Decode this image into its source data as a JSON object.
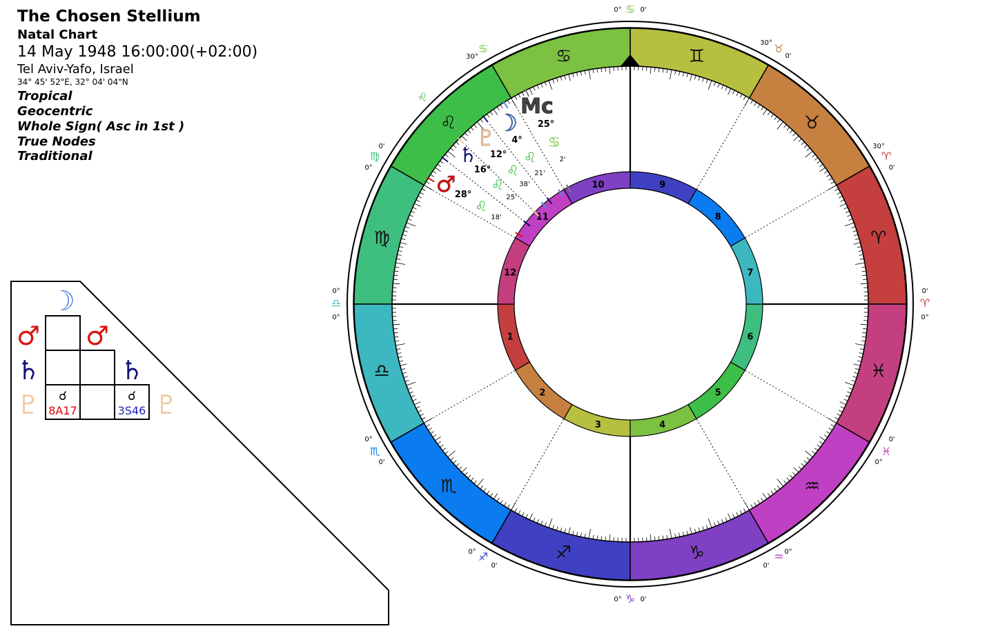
{
  "header": {
    "title": "The Chosen Stellium",
    "chart_type": "Natal Chart",
    "datetime": "14 May 1948 16:00:00(+02:00)",
    "location": "Tel Aviv-Yafo, Israel",
    "coordinates": "34° 45' 52\"E, 32° 04' 04\"N",
    "options": [
      "Tropical",
      "Geocentric",
      "Whole Sign( Asc in 1st )",
      "True Nodes",
      "Traditional"
    ]
  },
  "aspect_grid": {
    "top_glyph": "☽",
    "row_glyphs": [
      "♂",
      "♄",
      "♇"
    ],
    "right_glyphs": [
      "♂",
      "♄",
      "♇"
    ],
    "cells": [
      {
        "glyph": "☌",
        "label": "8A17",
        "color": "#dd0000"
      },
      {
        "glyph": "☌",
        "label": "3S46",
        "color": "#2222bb"
      }
    ]
  },
  "wheel": {
    "signs": [
      {
        "glyph": "♈",
        "color": "#c53f3f"
      },
      {
        "glyph": "♉",
        "color": "#c68040"
      },
      {
        "glyph": "♊",
        "color": "#b7bf40"
      },
      {
        "glyph": "♋",
        "color": "#7cc142"
      },
      {
        "glyph": "♌",
        "color": "#3dbe48"
      },
      {
        "glyph": "♍",
        "color": "#3ebf80"
      },
      {
        "glyph": "♎",
        "color": "#3db8c0"
      },
      {
        "glyph": "♏",
        "color": "#0a7cf0"
      },
      {
        "glyph": "♐",
        "color": "#4040c3"
      },
      {
        "glyph": "♑",
        "color": "#7f40c3"
      },
      {
        "glyph": "♒",
        "color": "#c040c4"
      },
      {
        "glyph": "♓",
        "color": "#c43f80"
      }
    ],
    "house_numbers": [
      "1",
      "2",
      "3",
      "4",
      "5",
      "6",
      "7",
      "8",
      "9",
      "10",
      "11",
      "12"
    ],
    "house_colors": [
      "#c53f3f",
      "#c68040",
      "#b7bf40",
      "#7cc142",
      "#3dbe48",
      "#3ebf80",
      "#3db8c0",
      "#0a7cf0",
      "#4040c3",
      "#7f40c3",
      "#c040c4",
      "#c43f80"
    ],
    "outer_labels": [
      {
        "deg": "0°",
        "glyph": "♋",
        "min": "0'"
      },
      {
        "deg": "30°",
        "glyph": "♉",
        "min": "0'"
      },
      {
        "deg": "30°",
        "glyph": "♈",
        "min": "0'"
      },
      {
        "deg": "0'",
        "glyph": "♈",
        "min": "0°"
      },
      {
        "deg": "0'",
        "glyph": "♓",
        "min": "0°"
      },
      {
        "deg": "0°",
        "glyph": "♒",
        "min": "0'"
      },
      {
        "deg": "0°",
        "glyph": "♑",
        "min": "0'"
      },
      {
        "deg": "0°",
        "glyph": "♐",
        "min": "0'"
      },
      {
        "deg": "0°",
        "glyph": "♏",
        "min": "0'"
      },
      {
        "deg": "0°",
        "glyph": "♎",
        "min": "0°"
      },
      {
        "deg": "0'",
        "glyph": "♍",
        "min": "0°"
      },
      {
        "deg": "",
        "glyph": "♌",
        "min": ""
      },
      {
        "deg": "30°",
        "glyph": "♋",
        "min": "0'"
      }
    ],
    "planets": [
      {
        "name": "Moon",
        "glyph": "☽",
        "degree": "4°",
        "sign": "♌",
        "minutes": "21'",
        "color": "#5588dd"
      },
      {
        "name": "Pluto",
        "glyph": "♇",
        "degree": "12°",
        "sign": "♌",
        "minutes": "38'",
        "color": "#f0c8a0"
      },
      {
        "name": "Saturn",
        "glyph": "♄",
        "degree": "16°",
        "sign": "♌",
        "minutes": "25'",
        "color": "#111177"
      },
      {
        "name": "Mars",
        "glyph": "♂",
        "degree": "28°",
        "sign": "♌",
        "minutes": "18'",
        "color": "#dd1111"
      },
      {
        "name": "Midheaven",
        "glyph": "Mc",
        "degree": "25°",
        "sign": "♋",
        "minutes": "2'",
        "color": "#444444"
      }
    ]
  }
}
